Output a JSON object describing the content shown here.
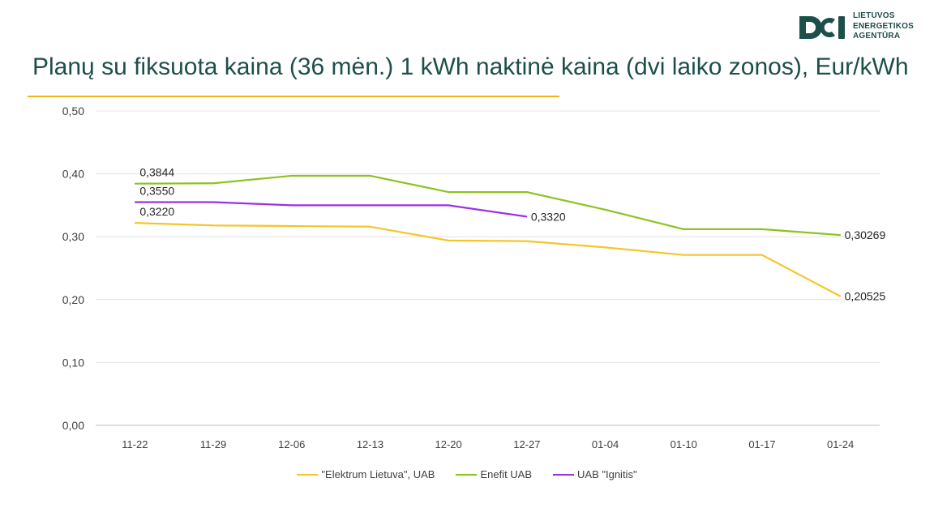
{
  "logo": {
    "line1": "LIETUVOS",
    "line2": "ENERGETIKOS",
    "line3": "AGENTŪRA",
    "color": "#1d4f4a"
  },
  "chart_data": {
    "type": "line",
    "title": "Planų su fiksuota kaina (36 mėn.) 1 kWh naktinė kaina (dvi laiko zonos), Eur/kWh",
    "xlabel": "",
    "ylabel": "",
    "categories": [
      "11-22",
      "11-29",
      "12-06",
      "12-13",
      "12-20",
      "12-27",
      "01-04",
      "01-10",
      "01-17",
      "01-24"
    ],
    "ylim": [
      0,
      0.5
    ],
    "yticks": [
      "0,00",
      "0,10",
      "0,20",
      "0,30",
      "0,40",
      "0,50"
    ],
    "grid": true,
    "legend_position": "bottom",
    "series": [
      {
        "name": "\"Elektrum Lietuva\", UAB",
        "color": "#f5c52b",
        "values": [
          0.322,
          0.318,
          0.317,
          0.316,
          0.294,
          0.293,
          0.283,
          0.271,
          0.271,
          0.20525
        ],
        "labels": [
          {
            "index": 0,
            "text": "0,3220"
          },
          {
            "index": 9,
            "text": "0,20525"
          }
        ]
      },
      {
        "name": "Enefit UAB",
        "color": "#8dc21f",
        "values": [
          0.3844,
          0.385,
          0.397,
          0.397,
          0.371,
          0.371,
          0.343,
          0.312,
          0.312,
          0.30269
        ],
        "labels": [
          {
            "index": 0,
            "text": "0,3844"
          },
          {
            "index": 9,
            "text": "0,30269"
          }
        ]
      },
      {
        "name": "UAB \"Ignitis\"",
        "color": "#9b30e8",
        "values": [
          0.355,
          0.355,
          0.35,
          0.35,
          0.35,
          0.332,
          null,
          null,
          null,
          null
        ],
        "labels": [
          {
            "index": 0,
            "text": "0,3550"
          },
          {
            "index": 5,
            "text": "0,3320"
          }
        ]
      }
    ]
  }
}
